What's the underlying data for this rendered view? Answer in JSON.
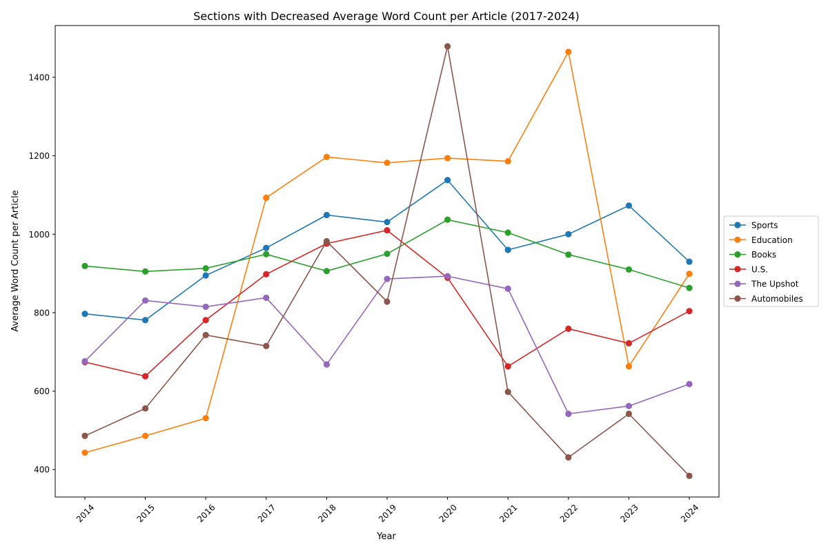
{
  "chart_data": {
    "type": "line",
    "title": "Sections with Decreased Average Word Count per Article (2017-2024)",
    "xlabel": "Year",
    "ylabel": "Average Word Count per Article",
    "x": [
      "2014",
      "2015",
      "2016",
      "2017",
      "2018",
      "2019",
      "2020",
      "2021",
      "2022",
      "2023",
      "2024"
    ],
    "ylim": [
      330,
      1532
    ],
    "yticks": [
      400,
      600,
      800,
      1000,
      1200,
      1400
    ],
    "grid": false,
    "legend_position": "center-right",
    "series": [
      {
        "name": "Sports",
        "color": "#1f77b4",
        "values": [
          797,
          781,
          895,
          965,
          1049,
          1031,
          1138,
          960,
          1000,
          1073,
          930
        ]
      },
      {
        "name": "Education",
        "color": "#ff7f0e",
        "values": [
          443,
          486,
          531,
          1093,
          1197,
          1182,
          1194,
          1186,
          1465,
          663,
          899
        ]
      },
      {
        "name": "Books",
        "color": "#2ca02c",
        "values": [
          919,
          905,
          913,
          949,
          906,
          950,
          1037,
          1004,
          948,
          910,
          863
        ]
      },
      {
        "name": "U.S.",
        "color": "#d62728",
        "values": [
          674,
          638,
          781,
          898,
          976,
          1010,
          889,
          663,
          759,
          722,
          804
        ]
      },
      {
        "name": "The Upshot",
        "color": "#9467bd",
        "values": [
          676,
          831,
          815,
          838,
          668,
          886,
          893,
          861,
          542,
          562,
          618
        ]
      },
      {
        "name": "Automobiles",
        "color": "#8c564b",
        "values": [
          486,
          556,
          743,
          715,
          982,
          828,
          1479,
          598,
          431,
          542,
          384
        ]
      }
    ]
  }
}
